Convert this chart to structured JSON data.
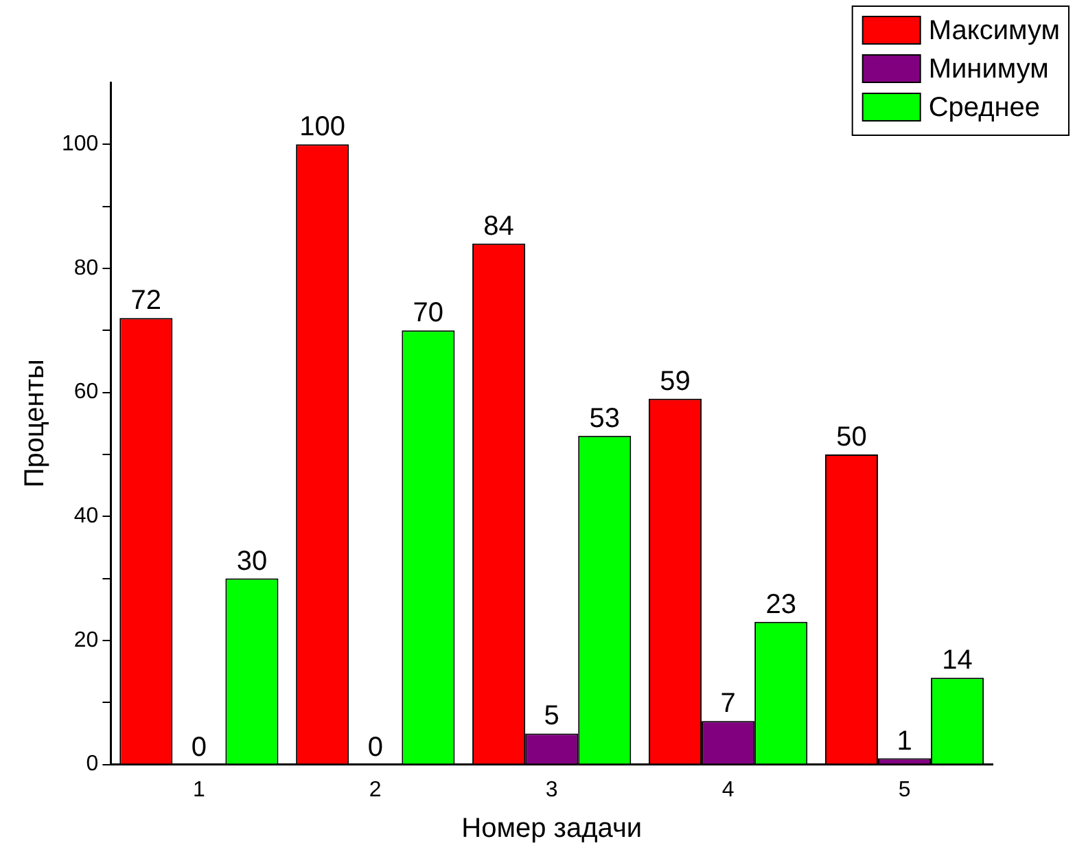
{
  "chart_data": {
    "type": "bar",
    "xlabel": "Номер задачи",
    "ylabel": "Проценты",
    "categories": [
      "1",
      "2",
      "3",
      "4",
      "5"
    ],
    "series": [
      {
        "name": "Максимум",
        "color": "#ff0000",
        "values": [
          72,
          100,
          84,
          59,
          50
        ]
      },
      {
        "name": "Минимум",
        "color": "#800080",
        "values": [
          0,
          0,
          5,
          7,
          1
        ]
      },
      {
        "name": "Среднее",
        "color": "#00ff00",
        "values": [
          30,
          70,
          53,
          23,
          14
        ]
      }
    ],
    "ylim": [
      0,
      110
    ],
    "yticks": [
      0,
      {
        "value": 10,
        "label": null
      },
      20,
      {
        "value": 30,
        "label": null
      },
      40,
      {
        "value": 50,
        "label": null
      },
      60,
      {
        "value": 70,
        "label": null
      },
      80,
      {
        "value": 90,
        "label": null
      },
      100
    ],
    "grid": false,
    "legend": "top right",
    "data_labels": true
  }
}
